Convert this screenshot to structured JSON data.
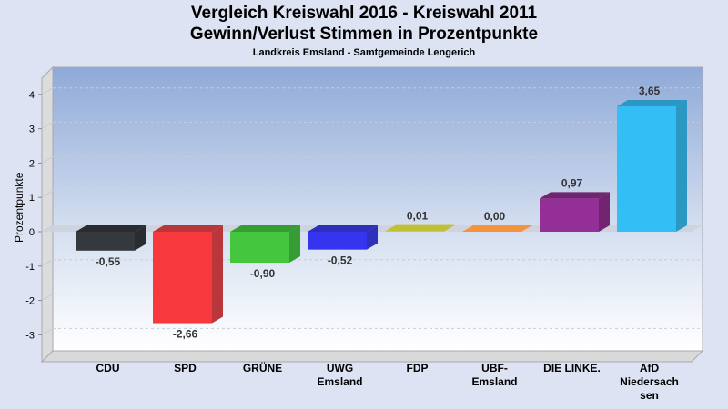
{
  "chart_data": {
    "type": "bar",
    "title": "Vergleich Kreiswahl 2016 - Kreiswahl 2011",
    "subtitle": "Gewinn/Verlust Stimmen in Prozentpunkte",
    "caption": "Landkreis Emsland - Samtgemeinde Lengerich",
    "ylabel": "Prozentpunkte",
    "xlabel": "",
    "ylim": [
      -3.5,
      4.5
    ],
    "yticks": [
      "4",
      "3",
      "2",
      "1",
      "0",
      "-1",
      "-2",
      "-3"
    ],
    "ytick_values": [
      4,
      3,
      2,
      1,
      0,
      -1,
      -2,
      -3
    ],
    "grid": true,
    "categories": [
      "CDU",
      "SPD",
      "GRÜNE",
      "UWG Emsland",
      "FDP",
      "UBF-Emsland",
      "DIE LINKE.",
      "AfD Niedersachsen"
    ],
    "category_lines": [
      [
        "CDU"
      ],
      [
        "SPD"
      ],
      [
        "GRÜNE"
      ],
      [
        "UWG",
        "Emsland"
      ],
      [
        "FDP"
      ],
      [
        "UBF-",
        "Emsland"
      ],
      [
        "DIE LINKE."
      ],
      [
        "AfD",
        "Niedersach",
        "sen"
      ]
    ],
    "values": [
      -0.55,
      -2.66,
      -0.9,
      -0.52,
      0.01,
      0.0,
      0.97,
      3.65
    ],
    "labels": [
      "-0,55",
      "-2,66",
      "-0,90",
      "-0,52",
      "0,01",
      "0,00",
      "0,97",
      "3,65"
    ],
    "colors": [
      "#35383d",
      "#f7383d",
      "#45c63f",
      "#3535f0",
      "#c0bf35",
      "#f5923a",
      "#932f96",
      "#33bff5"
    ],
    "side_colors": [
      "#2a2c30",
      "#b9363a",
      "#389c34",
      "#2f2fbb",
      "#a3a22d",
      "#d07a30",
      "#71256f",
      "#2a98c2"
    ]
  }
}
